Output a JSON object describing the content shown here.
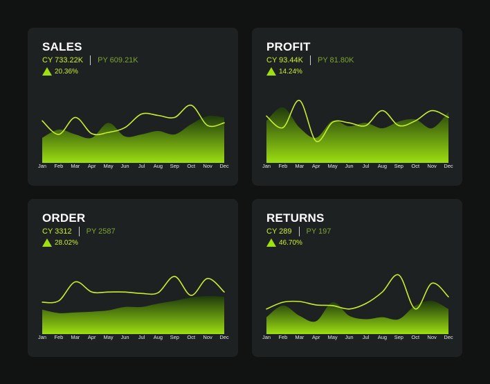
{
  "colors": {
    "background": "#111313",
    "card": "#1e2121",
    "accent_line": "#c8f030",
    "area_top": "#1f3a0c",
    "area_bottom": "#9cde12",
    "py_text": "#7da532"
  },
  "cards": [
    {
      "title": "SALES",
      "cy": "CY 733.22K",
      "py": "PY 609.21K",
      "delta": "20.36%",
      "delta_icon": "triangle-up-icon"
    },
    {
      "title": "PROFIT",
      "cy": "CY 93.44K",
      "py": "PY 81.80K",
      "delta": "14.24%",
      "delta_icon": "triangle-up-icon"
    },
    {
      "title": "ORDER",
      "cy": "CY 3312",
      "py": "PY 2587",
      "delta": "28.02%",
      "delta_icon": "triangle-up-icon"
    },
    {
      "title": "RETURNS",
      "cy": "CY 289",
      "py": "PY 197",
      "delta": "46.70%",
      "delta_icon": "triangle-up-icon"
    }
  ],
  "chart_data": [
    {
      "type": "area",
      "categories": [
        "Jan",
        "Feb",
        "Mar",
        "Apr",
        "May",
        "Jun",
        "Jul",
        "Aug",
        "Sep",
        "Oct",
        "Nov",
        "Dec"
      ],
      "ylim": [
        0,
        100
      ],
      "grid": false,
      "series": [
        {
          "role": "line",
          "values": [
            65,
            45,
            70,
            46,
            48,
            55,
            75,
            73,
            70,
            88,
            58,
            62
          ]
        },
        {
          "role": "area",
          "values": [
            40,
            52,
            45,
            40,
            62,
            42,
            45,
            50,
            45,
            60,
            72,
            70
          ]
        }
      ]
    },
    {
      "type": "area",
      "categories": [
        "Jan",
        "Feb",
        "Mar",
        "Apr",
        "May",
        "Jun",
        "Jul",
        "Aug",
        "Sep",
        "Oct",
        "Nov",
        "Dec"
      ],
      "ylim": [
        0,
        100
      ],
      "grid": false,
      "series": [
        {
          "role": "line",
          "values": [
            72,
            55,
            95,
            35,
            63,
            62,
            58,
            80,
            58,
            65,
            80,
            70
          ]
        },
        {
          "role": "area",
          "values": [
            65,
            85,
            55,
            40,
            65,
            57,
            62,
            54,
            64,
            67,
            54,
            78
          ]
        }
      ]
    },
    {
      "type": "area",
      "categories": [
        "Jan",
        "Feb",
        "Mar",
        "Apr",
        "May",
        "Jun",
        "Jul",
        "Aug",
        "Sep",
        "Oct",
        "Nov",
        "Dec"
      ],
      "ylim": [
        0,
        100
      ],
      "grid": false,
      "series": [
        {
          "role": "line",
          "values": [
            50,
            52,
            80,
            65,
            65,
            65,
            63,
            64,
            88,
            60,
            85,
            65
          ]
        },
        {
          "role": "area",
          "values": [
            39,
            34,
            35,
            36,
            38,
            43,
            43,
            48,
            52,
            57,
            59,
            58
          ]
        }
      ]
    },
    {
      "type": "area",
      "categories": [
        "Jan",
        "Feb",
        "Mar",
        "Apr",
        "May",
        "Jun",
        "Jul",
        "Aug",
        "Sep",
        "Oct",
        "Nov",
        "Dec"
      ],
      "ylim": [
        0,
        100
      ],
      "grid": false,
      "series": [
        {
          "role": "line",
          "values": [
            40,
            50,
            51,
            46,
            45,
            40,
            48,
            65,
            90,
            40,
            78,
            58
          ]
        },
        {
          "role": "area",
          "values": [
            28,
            45,
            30,
            22,
            50,
            30,
            25,
            28,
            25,
            45,
            52,
            40
          ]
        }
      ]
    }
  ]
}
